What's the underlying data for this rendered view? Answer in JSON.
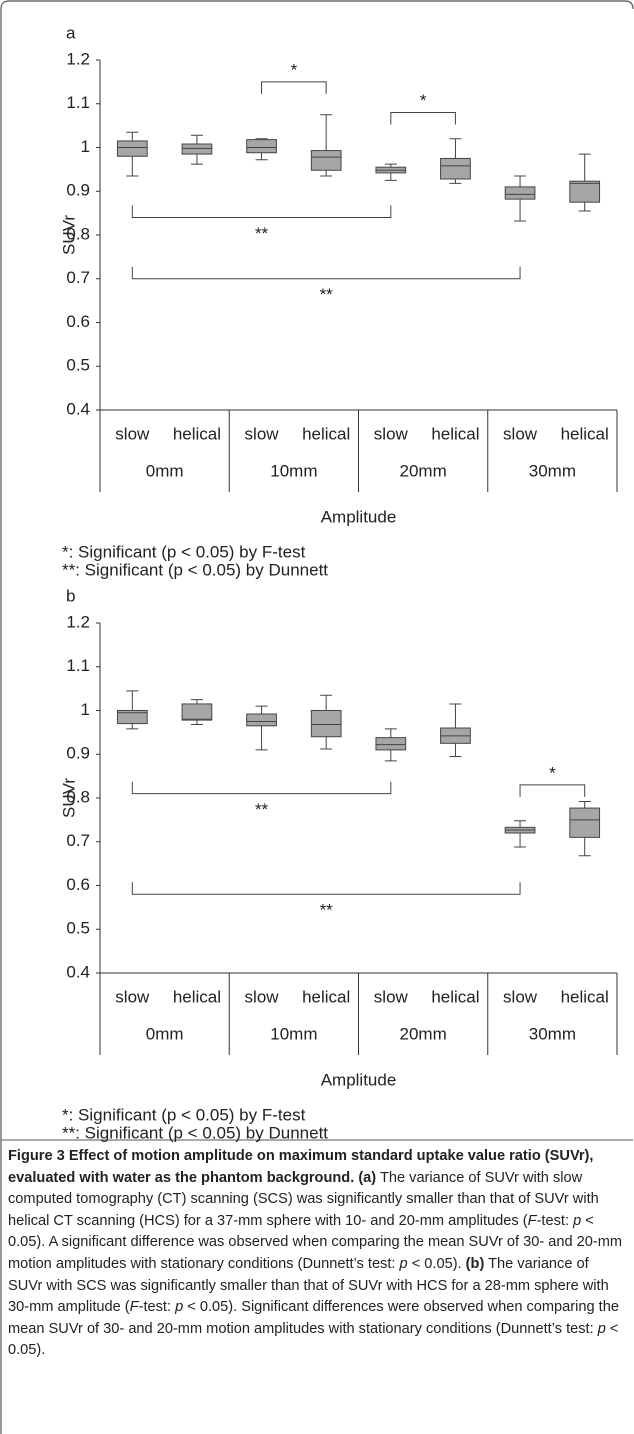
{
  "chart_data": [
    {
      "type": "box",
      "panel_label": "a",
      "ylabel": "SUVr",
      "xlabel": "Amplitude",
      "categories": [
        "slow",
        "helical",
        "slow",
        "helical",
        "slow",
        "helical",
        "slow",
        "helical"
      ],
      "groups": [
        "0mm",
        "10mm",
        "20mm",
        "30mm"
      ],
      "whisker_low": [
        0.935,
        0.962,
        0.972,
        0.935,
        0.925,
        0.918,
        0.832,
        0.855
      ],
      "q1": [
        0.98,
        0.985,
        0.988,
        0.948,
        0.942,
        0.928,
        0.882,
        0.875
      ],
      "median": [
        1.0,
        0.998,
        1.0,
        0.978,
        0.948,
        0.958,
        0.893,
        0.918
      ],
      "q3": [
        1.015,
        1.008,
        1.018,
        0.993,
        0.955,
        0.975,
        0.91,
        0.923
      ],
      "whisker_high": [
        1.035,
        1.028,
        1.02,
        1.075,
        0.962,
        1.02,
        0.935,
        0.985
      ],
      "color": "#a6a6a6",
      "ylim": [
        0.4,
        1.2
      ],
      "yticks": [
        0.4,
        0.5,
        0.6,
        0.7,
        0.8,
        0.9,
        1,
        1.1,
        1.2
      ],
      "brackets": [
        {
          "from": 2,
          "to": 3,
          "y": 1.15,
          "label": "*",
          "ends": "down"
        },
        {
          "from": 4,
          "to": 5,
          "y": 1.08,
          "label": "*",
          "ends": "down"
        },
        {
          "from": 0,
          "to": 4,
          "y": 0.84,
          "label": "**",
          "ends": "up"
        },
        {
          "from": 0,
          "to": 6,
          "y": 0.7,
          "label": "**",
          "ends": "up"
        }
      ],
      "notes": [
        "*: Significant (p < 0.05) by F-test",
        "**: Significant (p < 0.05) by Dunnett"
      ]
    },
    {
      "type": "box",
      "panel_label": "b",
      "ylabel": "SUVr",
      "xlabel": "Amplitude",
      "categories": [
        "slow",
        "helical",
        "slow",
        "helical",
        "slow",
        "helical",
        "slow",
        "helical"
      ],
      "groups": [
        "0mm",
        "10mm",
        "20mm",
        "30mm"
      ],
      "whisker_low": [
        0.958,
        0.968,
        0.91,
        0.912,
        0.885,
        0.895,
        0.688,
        0.668
      ],
      "q1": [
        0.97,
        0.978,
        0.965,
        0.94,
        0.91,
        0.925,
        0.72,
        0.71
      ],
      "median": [
        0.995,
        0.98,
        0.975,
        0.968,
        0.922,
        0.942,
        0.727,
        0.75
      ],
      "q3": [
        1.0,
        1.015,
        0.992,
        1.0,
        0.938,
        0.96,
        0.733,
        0.777
      ],
      "whisker_high": [
        1.045,
        1.025,
        1.01,
        1.035,
        0.958,
        1.015,
        0.748,
        0.792
      ],
      "color": "#a6a6a6",
      "ylim": [
        0.4,
        1.2
      ],
      "yticks": [
        0.4,
        0.5,
        0.6,
        0.7,
        0.8,
        0.9,
        1,
        1.1,
        1.2
      ],
      "brackets": [
        {
          "from": 6,
          "to": 7,
          "y": 0.83,
          "label": "*",
          "ends": "down"
        },
        {
          "from": 0,
          "to": 4,
          "y": 0.81,
          "label": "**",
          "ends": "up"
        },
        {
          "from": 0,
          "to": 6,
          "y": 0.58,
          "label": "**",
          "ends": "up"
        }
      ],
      "notes": [
        "*: Significant (p < 0.05) by F-test",
        "**: Significant (p < 0.05) by Dunnett"
      ]
    }
  ],
  "caption": {
    "segments": [
      {
        "text": "Figure 3 Effect of motion amplitude on maximum standard uptake value ratio (SUVr), evaluated with water as the phantom background.",
        "style": "bold"
      },
      {
        "text": " (a)",
        "style": "bold"
      },
      {
        "text": " The variance of SUVr with slow computed tomography (CT) scanning (SCS) was significantly smaller than that of SUVr with helical CT scanning (HCS) for a 37-mm sphere with 10- and 20-mm amplitudes (",
        "style": "normal"
      },
      {
        "text": "F",
        "style": "italic"
      },
      {
        "text": "-test: ",
        "style": "normal"
      },
      {
        "text": "p",
        "style": "italic"
      },
      {
        "text": " < 0.05). A significant difference was observed when comparing the mean SUVr of 30- and 20-mm motion amplitudes with stationary conditions (Dunnett’s test: ",
        "style": "normal"
      },
      {
        "text": "p",
        "style": "italic"
      },
      {
        "text": " < 0.05). ",
        "style": "normal"
      },
      {
        "text": "(b)",
        "style": "bold"
      },
      {
        "text": " The variance of SUVr with SCS was significantly smaller than that of SUVr with HCS for a 28-mm sphere with 30-mm amplitude (",
        "style": "normal"
      },
      {
        "text": "F",
        "style": "italic"
      },
      {
        "text": "-test: ",
        "style": "normal"
      },
      {
        "text": "p",
        "style": "italic"
      },
      {
        "text": " < 0.05). Significant differences were observed when comparing the mean SUVr of 30- and 20-mm motion amplitudes with stationary conditions (Dunnett’s test: ",
        "style": "normal"
      },
      {
        "text": "p",
        "style": "italic"
      },
      {
        "text": " < 0.05).",
        "style": "normal"
      }
    ]
  }
}
